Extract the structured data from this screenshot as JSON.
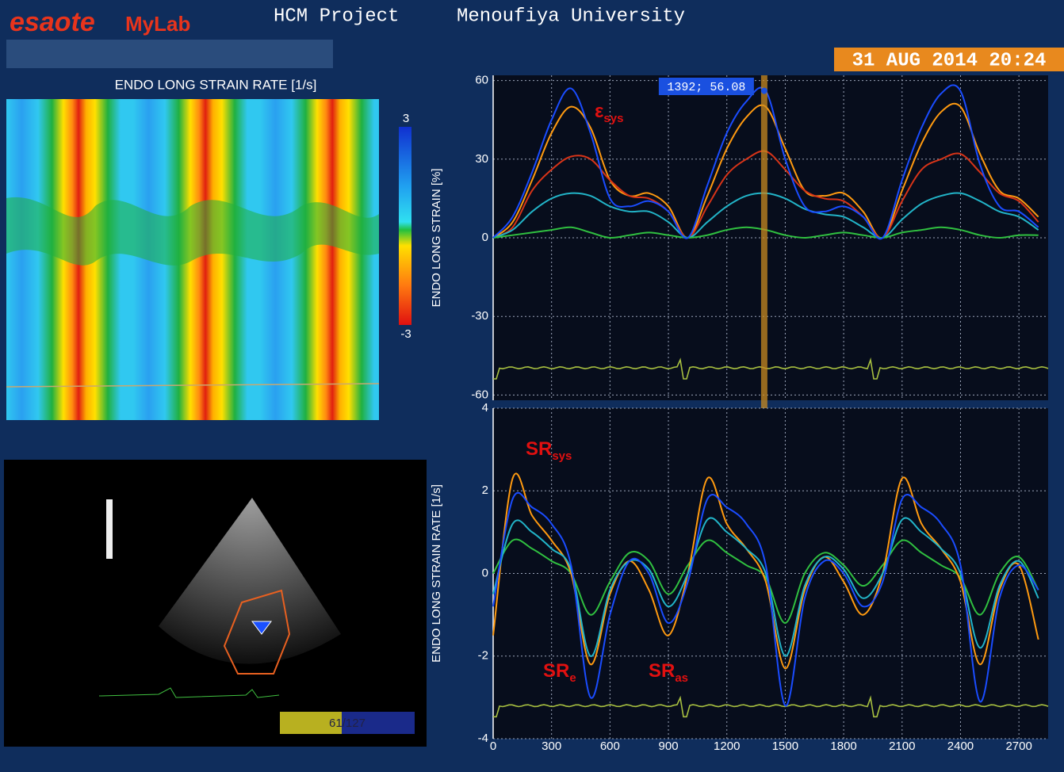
{
  "header": {
    "brand": "esaote",
    "product": "MyLab",
    "title": "HCM Project",
    "institution": "Menoufiya University",
    "datetime": "31 AUG 2014 20:24"
  },
  "heatmap": {
    "title": "ENDO LONG STRAIN RATE [1/s]",
    "clim": [
      -3,
      3
    ],
    "cticks": [
      3,
      -3
    ]
  },
  "ultrasound": {
    "frame": "61/127"
  },
  "chart_data": [
    {
      "type": "line",
      "y_label": "ENDO LONG STRAIN [%]",
      "xlim": [
        0,
        2850
      ],
      "ylim": [
        -62,
        62
      ],
      "yticks": [
        60,
        30,
        0,
        -30,
        -60
      ],
      "grid": true,
      "x": [
        0,
        100,
        200,
        300,
        400,
        500,
        600,
        700,
        800,
        900,
        1000,
        1100,
        1200,
        1300,
        1400,
        1500,
        1600,
        1700,
        1800,
        1900,
        2000,
        2100,
        2200,
        2300,
        2400,
        2500,
        2600,
        2700,
        2800
      ],
      "series": [
        {
          "color": "#ff9a10",
          "values": [
            0,
            6,
            22,
            40,
            50,
            42,
            22,
            16,
            17,
            12,
            0,
            16,
            34,
            46,
            50,
            34,
            18,
            16,
            17,
            10,
            0,
            18,
            36,
            48,
            50,
            32,
            18,
            15,
            8
          ]
        },
        {
          "color": "#d83418",
          "values": [
            0,
            4,
            18,
            26,
            31,
            30,
            22,
            16,
            15,
            10,
            0,
            12,
            24,
            30,
            33,
            26,
            18,
            15,
            14,
            8,
            0,
            14,
            26,
            30,
            32,
            25,
            17,
            14,
            6
          ]
        },
        {
          "color": "#22b4c8",
          "values": [
            0,
            3,
            10,
            15,
            17,
            16,
            12,
            10,
            10,
            6,
            0,
            6,
            12,
            16,
            17,
            15,
            11,
            9,
            8,
            4,
            0,
            7,
            13,
            16,
            17,
            14,
            10,
            8,
            3
          ]
        },
        {
          "color": "#30c040",
          "values": [
            0,
            1,
            2,
            3,
            4,
            2,
            0,
            1,
            2,
            1,
            0,
            1,
            3,
            4,
            3,
            1,
            0,
            1,
            2,
            1,
            0,
            2,
            3,
            4,
            3,
            1,
            0,
            1,
            1
          ]
        },
        {
          "color": "#1a4cff",
          "values": [
            0,
            8,
            25,
            45,
            57,
            40,
            15,
            12,
            14,
            10,
            0,
            20,
            40,
            52,
            56,
            30,
            12,
            10,
            12,
            8,
            0,
            22,
            42,
            55,
            56,
            28,
            12,
            10,
            4
          ]
        }
      ],
      "cursor": {
        "x": 1392,
        "y": 56.08,
        "label": "1392; 56.08"
      },
      "annotations": [
        {
          "text": "ε",
          "sub": "sys"
        }
      ]
    },
    {
      "type": "line",
      "y_label": "ENDO LONG STRAIN RATE [1/s]",
      "xlim": [
        0,
        2850
      ],
      "ylim": [
        -4,
        4
      ],
      "yticks": [
        4,
        2,
        0,
        -2,
        -4
      ],
      "xticks": [
        0,
        300,
        600,
        900,
        1200,
        1500,
        1800,
        2100,
        2400,
        2700
      ],
      "grid": true,
      "x": [
        0,
        100,
        200,
        300,
        400,
        500,
        600,
        700,
        800,
        900,
        1000,
        1100,
        1200,
        1300,
        1400,
        1500,
        1600,
        1700,
        1800,
        1900,
        2000,
        2100,
        2200,
        2300,
        2400,
        2500,
        2600,
        2700,
        2800
      ],
      "series": [
        {
          "color": "#30c040",
          "values": [
            0,
            0.8,
            0.6,
            0.3,
            0,
            -1.0,
            -0.2,
            0.5,
            0.3,
            -0.5,
            0.2,
            0.8,
            0.5,
            0.2,
            -0.1,
            -1.2,
            0,
            0.5,
            0.2,
            -0.3,
            0.2,
            0.8,
            0.5,
            0.2,
            -0.1,
            -1.0,
            0,
            0.4,
            -0.4
          ]
        },
        {
          "color": "#ff9a10",
          "values": [
            -1.5,
            2.3,
            1.4,
            0.8,
            0,
            -2.2,
            -0.5,
            0.3,
            -0.4,
            -1.5,
            0,
            2.3,
            1.2,
            0.6,
            -0.2,
            -2.3,
            -0.4,
            0.4,
            -0.2,
            -1.0,
            0,
            2.3,
            1.2,
            0.6,
            -0.2,
            -2.2,
            -0.4,
            0.2,
            -1.6
          ]
        },
        {
          "color": "#22b4c8",
          "values": [
            -0.5,
            1.2,
            1.0,
            0.6,
            0.1,
            -2.0,
            -0.4,
            0.3,
            0.1,
            -0.8,
            0,
            1.3,
            1.0,
            0.6,
            0,
            -2.0,
            -0.3,
            0.4,
            0.1,
            -0.6,
            0,
            1.3,
            1.0,
            0.6,
            0,
            -1.8,
            -0.3,
            0.3,
            -0.6
          ]
        },
        {
          "color": "#1a4cff",
          "values": [
            -0.8,
            1.8,
            1.6,
            1.2,
            0.2,
            -3.0,
            -1.0,
            0.3,
            0,
            -1.2,
            -0.2,
            1.8,
            1.6,
            1.2,
            0.2,
            -3.2,
            -0.6,
            0.3,
            0,
            -0.8,
            -0.2,
            1.8,
            1.6,
            1.2,
            0.2,
            -3.1,
            -0.6,
            0.2,
            -0.4
          ]
        }
      ],
      "annotations": [
        {
          "text": "SR",
          "sub": "sys"
        },
        {
          "text": "SR",
          "sub": "e"
        },
        {
          "text": "SR",
          "sub": "as"
        }
      ]
    }
  ]
}
